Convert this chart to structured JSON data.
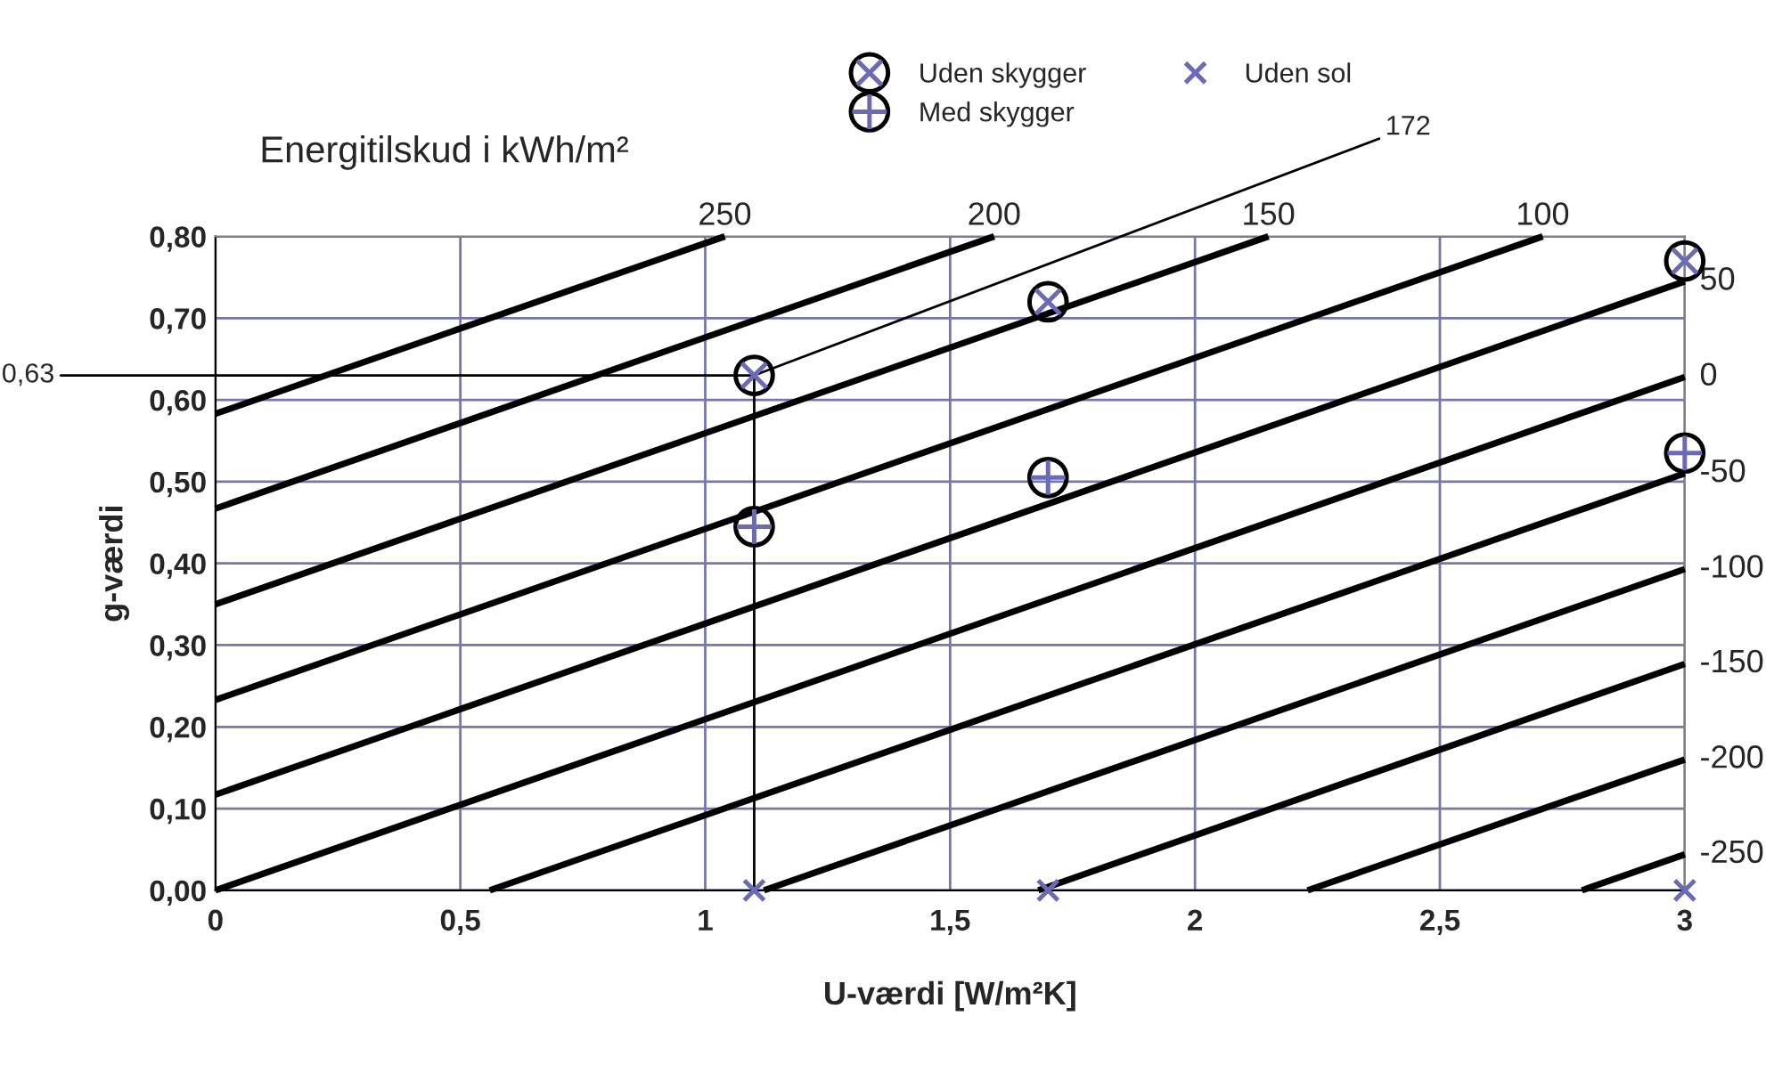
{
  "chart_data": {
    "type": "scatter",
    "title": "Energitilskud i kWh/m²",
    "xlabel": "U-værdi [W/m²K]",
    "ylabel": "g-værdi",
    "xlim": [
      0,
      3
    ],
    "xticks": [
      0,
      {
        "value": 0.5,
        "label": "0,5"
      },
      1,
      {
        "value": 1.5,
        "label": "1,5"
      },
      2,
      {
        "value": 2.5,
        "label": "2,5"
      },
      3
    ],
    "ylim": [
      0,
      0.8
    ],
    "yticks": [
      {
        "value": 0,
        "label": "0,00"
      },
      {
        "value": 0.1,
        "label": "0,10"
      },
      {
        "value": 0.2,
        "label": "0,20"
      },
      {
        "value": 0.3,
        "label": "0,30"
      },
      {
        "value": 0.4,
        "label": "0,40"
      },
      {
        "value": 0.5,
        "label": "0,50"
      },
      {
        "value": 0.6,
        "label": "0,60"
      },
      {
        "value": 0.7,
        "label": "0,70"
      },
      {
        "value": 0.8,
        "label": "0,80"
      }
    ],
    "grid": true,
    "legend": "top",
    "series": [
      {
        "type": "line",
        "name": "250",
        "color": "#000000",
        "x": [
          0,
          1.04
        ],
        "values": [
          0.583,
          0.8
        ]
      },
      {
        "type": "line",
        "name": "200",
        "color": "#000000",
        "x": [
          0,
          1.59
        ],
        "values": [
          0.467,
          0.8
        ]
      },
      {
        "type": "line",
        "name": "150",
        "color": "#000000",
        "x": [
          0,
          2.15
        ],
        "values": [
          0.35,
          0.8
        ]
      },
      {
        "type": "line",
        "name": "100",
        "color": "#000000",
        "x": [
          0,
          2.71
        ],
        "values": [
          0.233,
          0.8
        ]
      },
      {
        "type": "line",
        "name": "50",
        "color": "#000000",
        "x": [
          0,
          3
        ],
        "values": [
          0.117,
          0.745
        ]
      },
      {
        "type": "line",
        "name": "0",
        "color": "#000000",
        "x": [
          0,
          3
        ],
        "values": [
          0,
          0.628
        ]
      },
      {
        "type": "line",
        "name": "-50",
        "color": "#000000",
        "x": [
          0.56,
          3
        ],
        "values": [
          0,
          0.51
        ]
      },
      {
        "type": "line",
        "name": "-100",
        "color": "#000000",
        "x": [
          1.12,
          3
        ],
        "values": [
          0,
          0.393
        ]
      },
      {
        "type": "line",
        "name": "-150",
        "color": "#000000",
        "x": [
          1.68,
          3
        ],
        "values": [
          0,
          0.277
        ]
      },
      {
        "type": "line",
        "name": "-200",
        "color": "#000000",
        "x": [
          2.23,
          3
        ],
        "values": [
          0,
          0.16
        ]
      },
      {
        "type": "line",
        "name": "-250",
        "color": "#000000",
        "x": [
          2.79,
          3
        ],
        "values": [
          0,
          0.044
        ]
      },
      {
        "type": "line",
        "color": "#000000",
        "x": [
          0,
          1.1,
          1.1
        ],
        "values": [
          0.63,
          0.63,
          0
        ]
      },
      {
        "name": "Uden skygger",
        "color": "#6b6bb5",
        "marker": "cross",
        "x": [
          1.1,
          1.7,
          3
        ],
        "values": [
          0.63,
          0.72,
          0.77
        ]
      },
      {
        "name": "Med skygger",
        "color": "#6b6bb5",
        "marker": "cross",
        "x": [
          1.1,
          1.7,
          3
        ],
        "values": [
          0.445,
          0.505,
          0.535
        ]
      },
      {
        "name": "Uden sol",
        "color": "#6b6bb5",
        "marker": "cross",
        "x": [
          1.1,
          1.7,
          3
        ],
        "values": [
          0,
          0,
          0
        ]
      }
    ],
    "annotations": [
      {
        "text": "0,63",
        "x": 0,
        "y": 0.63
      },
      {
        "text": "172",
        "x": 1.1,
        "y": 0.63
      }
    ]
  }
}
